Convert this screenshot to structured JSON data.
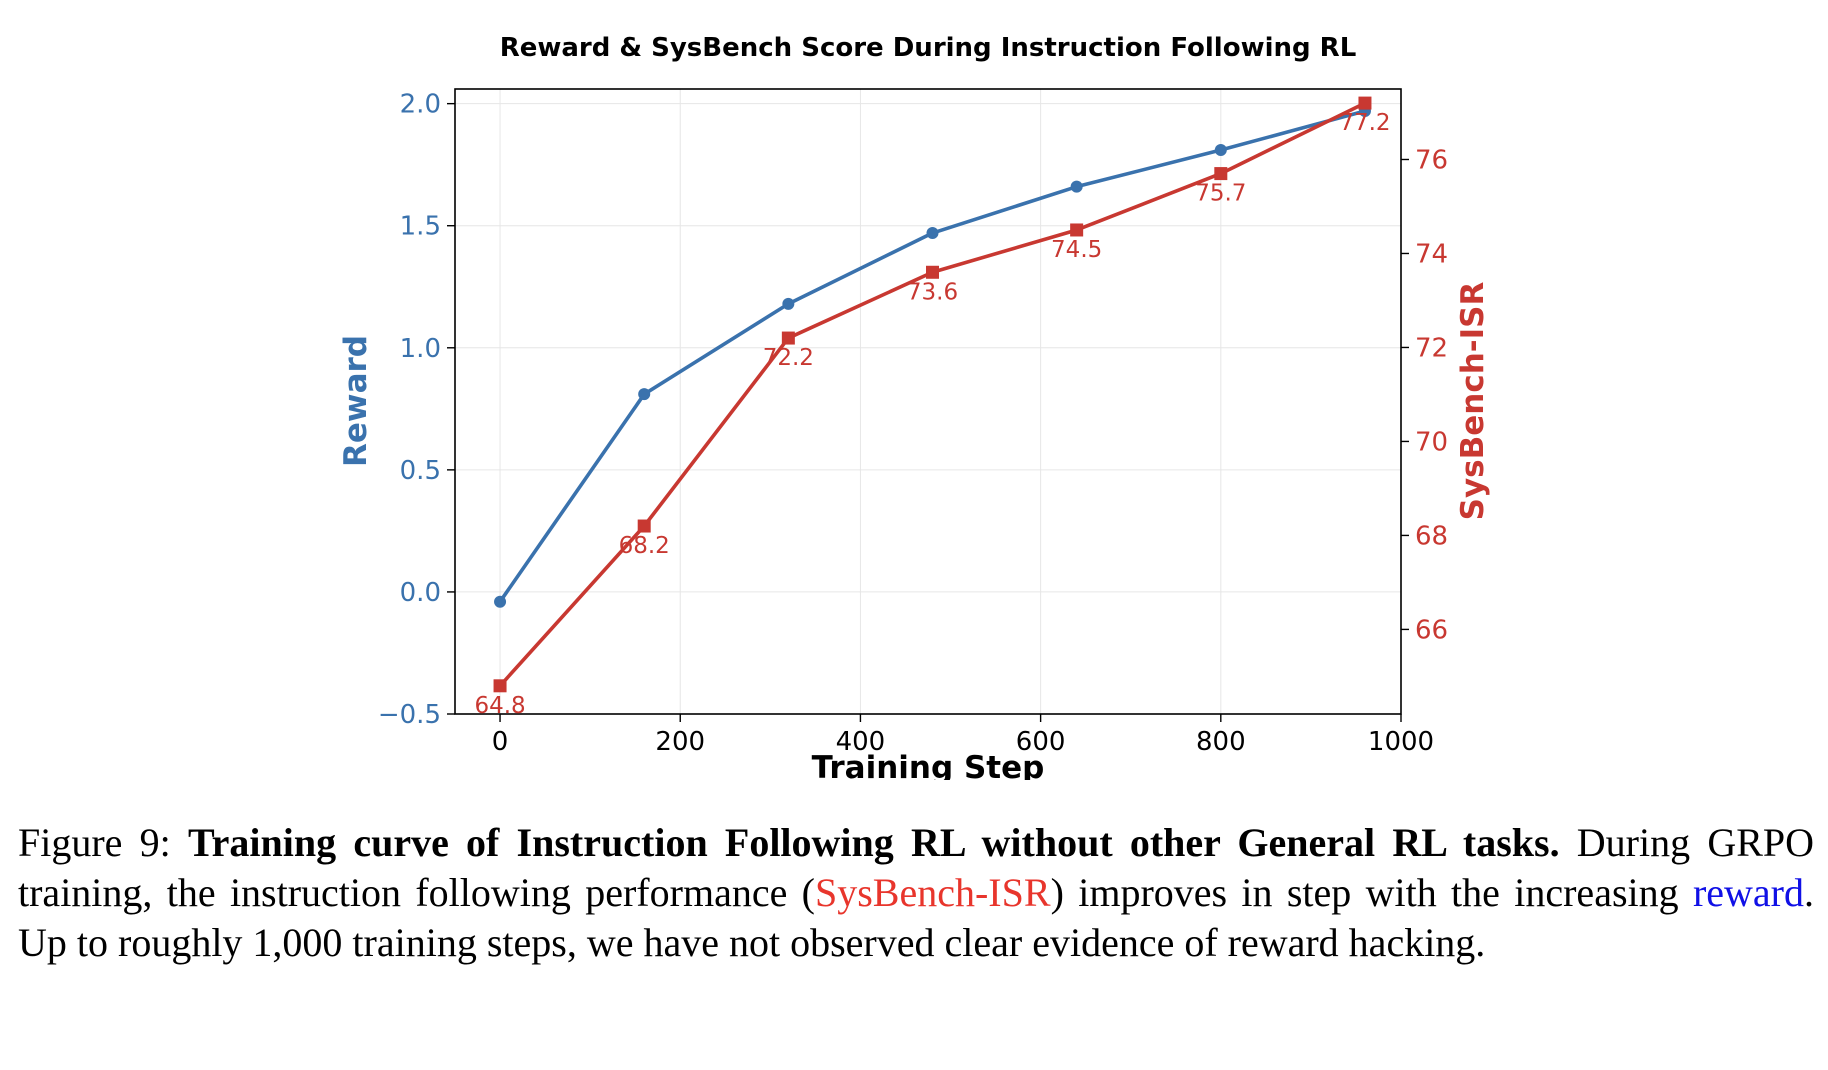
{
  "chart_data": {
    "type": "line",
    "title": "Reward & SysBench Score During Instruction Following RL",
    "xlabel": "Training Step",
    "ylabel_left": "Reward",
    "ylabel_right": "SysBench-ISR",
    "xlim": [
      -50,
      1000
    ],
    "ylim_left": [
      -0.5,
      2.06
    ],
    "ylim_right": [
      64.2,
      77.5
    ],
    "x_ticks": [
      "0",
      "200",
      "400",
      "600",
      "800",
      "1000"
    ],
    "y_ticks_left": [
      "−0.5",
      "0.0",
      "0.5",
      "1.0",
      "1.5",
      "2.0"
    ],
    "y_ticks_right": [
      "66",
      "68",
      "70",
      "72",
      "74",
      "76"
    ],
    "grid": true,
    "colors": {
      "reward": "#3a72ad",
      "sysbench": "#c83831"
    },
    "series": [
      {
        "axis": "left",
        "marker": "circle",
        "x": [
          0,
          160,
          320,
          480,
          640,
          800,
          960
        ],
        "values": [
          -0.04,
          0.81,
          1.18,
          1.47,
          1.66,
          1.81,
          1.97
        ]
      },
      {
        "axis": "right",
        "marker": "square",
        "x": [
          0,
          160,
          320,
          480,
          640,
          800,
          960
        ],
        "values": [
          64.8,
          68.2,
          72.2,
          73.6,
          74.5,
          75.7,
          77.2
        ],
        "labels": [
          "64.8",
          "68.2",
          "72.2",
          "73.6",
          "74.5",
          "75.7",
          "77.2"
        ]
      }
    ]
  },
  "caption": {
    "figure_label": "Figure 9:",
    "bold_title": "Training curve of Instruction Following RL without other General RL tasks.",
    "text_1": "During GRPO training, the instruction following performance (",
    "red_term": "SysBench-ISR",
    "text_2": ") improves in step with the increasing",
    "blue_term": "reward",
    "text_3": ". Up to roughly 1,000 training steps, we have not observed clear evidence of reward hacking."
  }
}
